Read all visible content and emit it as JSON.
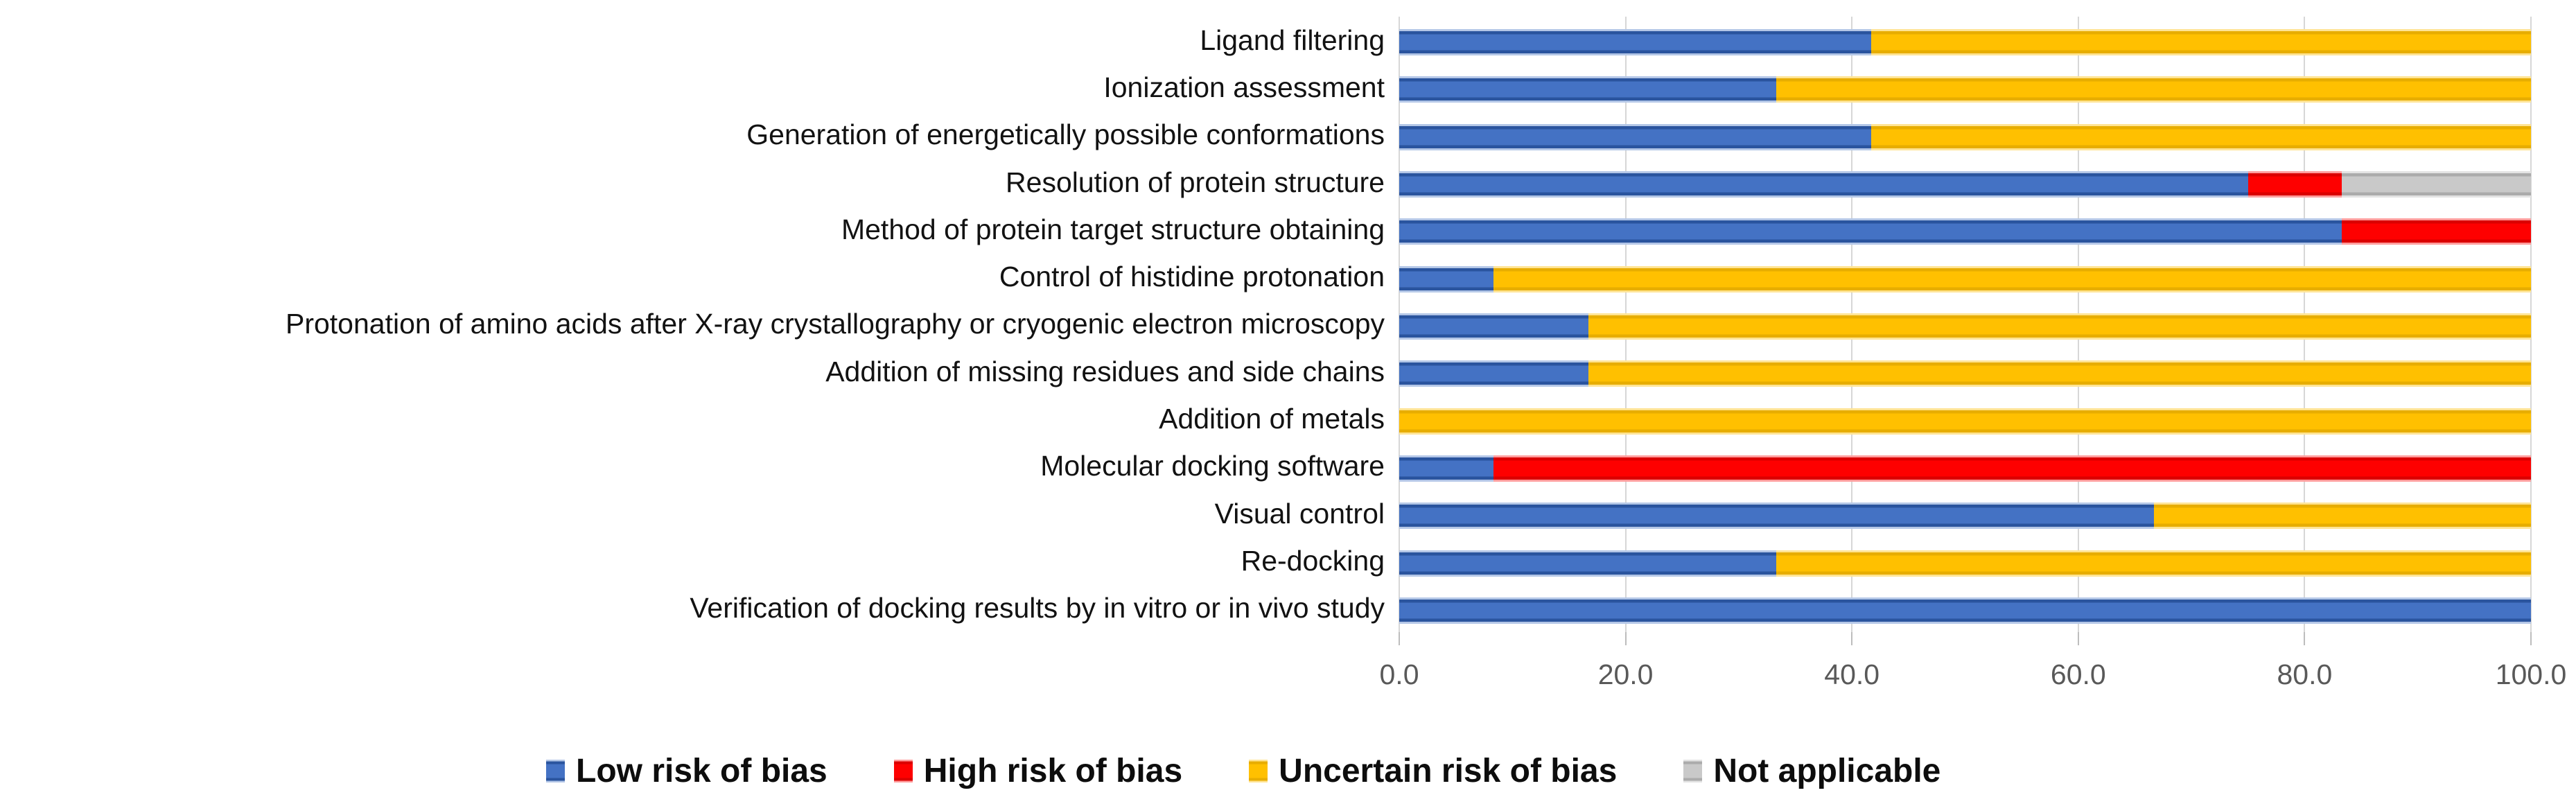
{
  "chart_data": {
    "type": "bar",
    "orientation": "horizontal-stacked",
    "title": "",
    "xlabel": "",
    "ylabel": "",
    "x_axis": {
      "min": 0,
      "max": 100,
      "tick_values": [
        0,
        20,
        40,
        60,
        80,
        100
      ],
      "tick_labels": [
        "0.0",
        "20.0",
        "40.0",
        "60.0",
        "80.0",
        "100.0"
      ]
    },
    "grid": true,
    "legend_position": "bottom",
    "categories": [
      "Ligand filtering",
      "Ionization assessment",
      "Generation of energetically possible conformations",
      "Resolution of protein structure",
      "Method of protein target structure obtaining",
      "Control of histidine protonation",
      "Protonation of amino acids after X-ray crystallography or cryogenic electron microscopy",
      "Addition of missing residues and side chains",
      "Addition of metals",
      "Molecular docking software",
      "Visual control",
      "Re-docking",
      "Verification of docking results by in vitro or in vivo study"
    ],
    "series": [
      {
        "name": "Low risk of bias",
        "color": "#4472c4",
        "color_dark": "#2a549e",
        "color_light": "#b4c7e7",
        "values": [
          41.7,
          33.3,
          41.7,
          75.0,
          83.3,
          8.3,
          16.7,
          16.7,
          0,
          8.3,
          66.7,
          33.3,
          100.0
        ]
      },
      {
        "name": "High risk of bias",
        "color": "#fe0000",
        "color_dark": "#db0000",
        "color_light": "#ff9d9d",
        "values": [
          0,
          0,
          0,
          8.3,
          16.7,
          0,
          0,
          0,
          0,
          91.7,
          0,
          0,
          0
        ]
      },
      {
        "name": "Uncertain risk of bias",
        "color": "#ffc000",
        "color_dark": "#e7ad00",
        "color_light": "#ffe495",
        "values": [
          58.3,
          66.7,
          58.3,
          0,
          0,
          91.7,
          83.3,
          83.3,
          100.0,
          0,
          33.3,
          66.7,
          0
        ]
      },
      {
        "name": "Not applicable",
        "color": "#c9c9c9",
        "color_dark": "#ababab",
        "color_light": "#e3e3e3",
        "values": [
          0,
          0,
          0,
          16.7,
          0,
          0,
          0,
          0,
          0,
          0,
          0,
          0,
          0
        ]
      }
    ]
  },
  "style": {
    "gridline_color": "#d7d7d7",
    "tick_color": "#bdbdbd",
    "axis_label_color": "#595959",
    "category_label_color": "#121212",
    "legend_text_color": "#0d0d0d",
    "background": "#ffffff"
  }
}
